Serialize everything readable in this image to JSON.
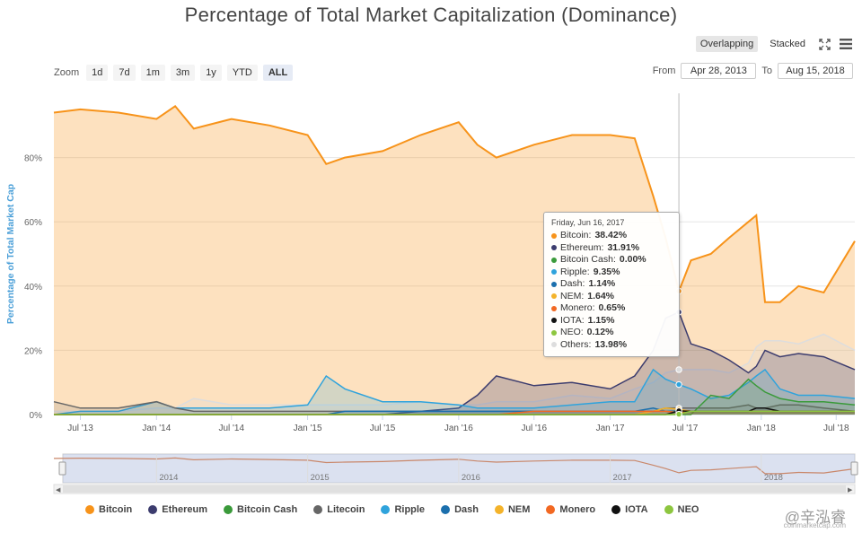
{
  "title": "Percentage of Total Market Capitalization (Dominance)",
  "controls": {
    "overlapping_label": "Overlapping",
    "stacked_label": "Stacked",
    "fullscreen_icon": "expand-icon",
    "menu_icon": "hamburger-menu-icon"
  },
  "zoom": {
    "label": "Zoom",
    "buttons": [
      "1d",
      "7d",
      "1m",
      "3m",
      "1y",
      "YTD",
      "ALL"
    ],
    "active": "ALL"
  },
  "range": {
    "from_label": "From",
    "from_value": "Apr 28, 2013",
    "to_label": "To",
    "to_value": "Aug 15, 2018"
  },
  "tooltip": {
    "date": "Friday, Jun 16, 2017",
    "rows": [
      {
        "name": "Bitcoin",
        "value": "38.42%",
        "color": "#f7931a"
      },
      {
        "name": "Ethereum",
        "value": "31.91%",
        "color": "#3c3c6e"
      },
      {
        "name": "Bitcoin Cash",
        "value": "0.00%",
        "color": "#3a9a3a"
      },
      {
        "name": "Ripple",
        "value": "9.35%",
        "color": "#2fa3dc"
      },
      {
        "name": "Dash",
        "value": "1.14%",
        "color": "#1b6fad"
      },
      {
        "name": "NEM",
        "value": "1.64%",
        "color": "#f4b32a"
      },
      {
        "name": "Monero",
        "value": "0.65%",
        "color": "#f26822"
      },
      {
        "name": "IOTA",
        "value": "1.15%",
        "color": "#111111"
      },
      {
        "name": "NEO",
        "value": "0.12%",
        "color": "#8dc63f"
      },
      {
        "name": "Others",
        "value": "13.98%",
        "color": "#dddddd"
      }
    ]
  },
  "navigator": {
    "year_labels": [
      "2014",
      "2015",
      "2016",
      "2017",
      "2018"
    ]
  },
  "legend": [
    {
      "name": "Bitcoin",
      "color": "#f7931a"
    },
    {
      "name": "Ethereum",
      "color": "#3c3c6e"
    },
    {
      "name": "Bitcoin Cash",
      "color": "#3a9a3a"
    },
    {
      "name": "Litecoin",
      "color": "#666666"
    },
    {
      "name": "Ripple",
      "color": "#2fa3dc"
    },
    {
      "name": "Dash",
      "color": "#1b6fad"
    },
    {
      "name": "NEM",
      "color": "#f4b32a"
    },
    {
      "name": "Monero",
      "color": "#f26822"
    },
    {
      "name": "IOTA",
      "color": "#111111"
    },
    {
      "name": "NEO",
      "color": "#8dc63f"
    }
  ],
  "watermark": {
    "text": "@辛泓睿",
    "sub": "coinmarketcap.com"
  },
  "chart_data": {
    "type": "area",
    "title": "Percentage of Total Market Capitalization (Dominance)",
    "ylabel": "Percentage of Total Market Cap",
    "xlabel": "",
    "ylim": [
      0,
      100
    ],
    "y_ticks": [
      "0%",
      "20%",
      "40%",
      "60%",
      "80%"
    ],
    "x_ticks": [
      "Jul '13",
      "Jan '14",
      "Jul '14",
      "Jan '15",
      "Jul '15",
      "Jan '16",
      "Jul '16",
      "Jan '17",
      "Jul '17",
      "Jan '18",
      "Jul '18"
    ],
    "x": [
      "2013-04-28",
      "2013-07-01",
      "2013-10-01",
      "2014-01-01",
      "2014-02-15",
      "2014-04-01",
      "2014-07-01",
      "2014-10-01",
      "2015-01-01",
      "2015-02-15",
      "2015-04-01",
      "2015-07-01",
      "2015-10-01",
      "2016-01-01",
      "2016-02-15",
      "2016-04-01",
      "2016-07-01",
      "2016-10-01",
      "2017-01-01",
      "2017-03-01",
      "2017-04-15",
      "2017-05-15",
      "2017-06-16",
      "2017-07-15",
      "2017-09-01",
      "2017-10-15",
      "2017-12-01",
      "2017-12-20",
      "2018-01-10",
      "2018-02-15",
      "2018-04-01",
      "2018-06-01",
      "2018-08-15"
    ],
    "series": [
      {
        "name": "Bitcoin",
        "color": "#f7931a",
        "values": [
          94,
          95,
          94,
          92,
          96,
          89,
          92,
          90,
          87,
          78,
          80,
          82,
          87,
          91,
          84,
          80,
          84,
          87,
          87,
          86,
          68,
          55,
          38.42,
          48,
          50,
          55,
          60,
          62,
          35,
          35,
          40,
          38,
          54
        ]
      },
      {
        "name": "Ethereum",
        "color": "#3c3c6e",
        "values": [
          0,
          0,
          0,
          0,
          0,
          0,
          0,
          0,
          0,
          0,
          0,
          0,
          1,
          2,
          6,
          12,
          9,
          10,
          8,
          12,
          20,
          30,
          31.91,
          22,
          20,
          17,
          13,
          15,
          20,
          18,
          19,
          18,
          14
        ]
      },
      {
        "name": "Bitcoin Cash",
        "color": "#3a9a3a",
        "values": [
          0,
          0,
          0,
          0,
          0,
          0,
          0,
          0,
          0,
          0,
          0,
          0,
          0,
          0,
          0,
          0,
          0,
          0,
          0,
          0,
          0,
          0,
          0,
          0,
          6,
          5,
          11,
          9,
          7,
          5,
          4,
          4,
          3
        ]
      },
      {
        "name": "Litecoin",
        "color": "#666666",
        "values": [
          4,
          2,
          2,
          4,
          2,
          1,
          1,
          1,
          1,
          1,
          1,
          1,
          1,
          1,
          1,
          1,
          1,
          1,
          1,
          1,
          1,
          2,
          2,
          2,
          2,
          2,
          3,
          2,
          2,
          3,
          3,
          2,
          1
        ]
      },
      {
        "name": "Ripple",
        "color": "#2fa3dc",
        "values": [
          0,
          1,
          1,
          4,
          2,
          2,
          2,
          2,
          3,
          12,
          8,
          4,
          4,
          3,
          2,
          2,
          2,
          3,
          4,
          4,
          14,
          11,
          9.35,
          8,
          5,
          6,
          10,
          12,
          14,
          8,
          6,
          6,
          5
        ]
      },
      {
        "name": "Dash",
        "color": "#1b6fad",
        "values": [
          0,
          0,
          0,
          0,
          0,
          0,
          0,
          0,
          0,
          0,
          1,
          1,
          1,
          1,
          1,
          1,
          1,
          1,
          1,
          1,
          2,
          1,
          1.14,
          1,
          1,
          1,
          1,
          1,
          1,
          1,
          1,
          1,
          1
        ]
      },
      {
        "name": "NEM",
        "color": "#f4b32a",
        "values": [
          0,
          0,
          0,
          0,
          0,
          0,
          0,
          0,
          0,
          0,
          0,
          0,
          0,
          0,
          0,
          0,
          0,
          0,
          0,
          0,
          1,
          2,
          1.64,
          1,
          1,
          1,
          1,
          1,
          1,
          1,
          1,
          1,
          1
        ]
      },
      {
        "name": "Monero",
        "color": "#f26822",
        "values": [
          0,
          0,
          0,
          0,
          0,
          0,
          0,
          0,
          0,
          0,
          0,
          0,
          0,
          0,
          0,
          0,
          1,
          1,
          1,
          1,
          1,
          1,
          0.65,
          1,
          1,
          1,
          1,
          1,
          1,
          1,
          1,
          1,
          1
        ]
      },
      {
        "name": "IOTA",
        "color": "#111111",
        "values": [
          0,
          0,
          0,
          0,
          0,
          0,
          0,
          0,
          0,
          0,
          0,
          0,
          0,
          0,
          0,
          0,
          0,
          0,
          0,
          0,
          0,
          0,
          1.15,
          1,
          1,
          1,
          1,
          2,
          2,
          1,
          1,
          1,
          1
        ]
      },
      {
        "name": "NEO",
        "color": "#8dc63f",
        "values": [
          0,
          0,
          0,
          0,
          0,
          0,
          0,
          0,
          0,
          0,
          0,
          0,
          0,
          0,
          0,
          0,
          0,
          0,
          0,
          0,
          0,
          0,
          0.12,
          1,
          1,
          1,
          1,
          1,
          1,
          1,
          1,
          1,
          1
        ]
      },
      {
        "name": "Others",
        "color": "#dddddd",
        "values": [
          1,
          1,
          1,
          2,
          2,
          5,
          3,
          3,
          3,
          3,
          3,
          3,
          4,
          3,
          3,
          4,
          4,
          6,
          5,
          8,
          10,
          13,
          13.98,
          14,
          14,
          13,
          16,
          21,
          23,
          23,
          22,
          25,
          20
        ]
      }
    ],
    "legend_position": "bottom",
    "grid": true
  }
}
